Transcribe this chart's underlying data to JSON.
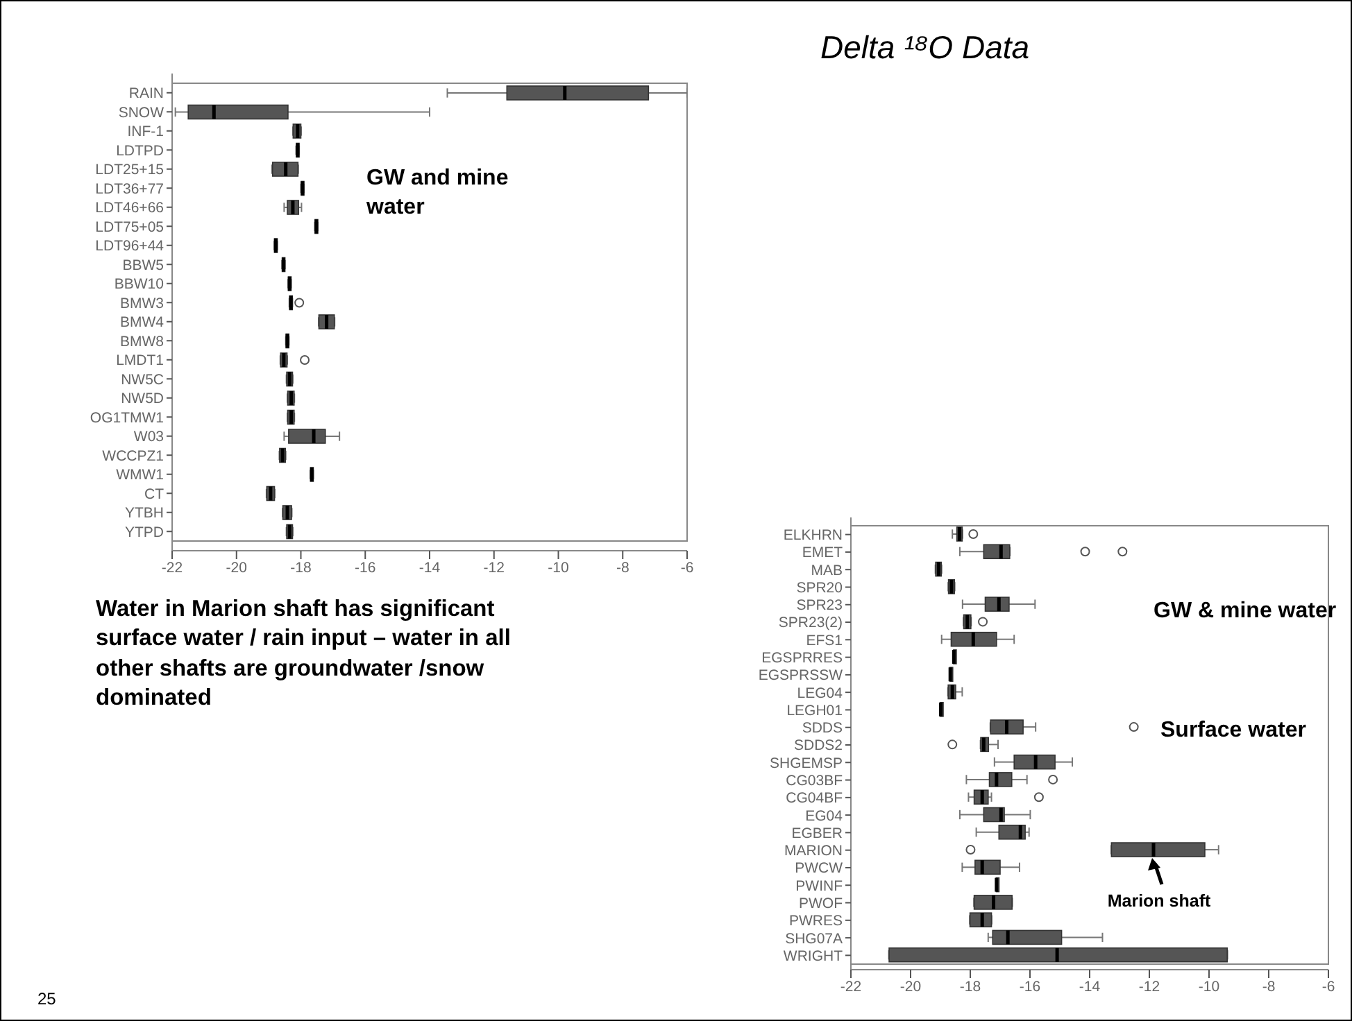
{
  "chart_data": [
    {
      "type": "box",
      "orientation": "horizontal",
      "color": "#555555",
      "categories": [
        "RAIN",
        "SNOW",
        "INF-1",
        "LDTPD",
        "LDT25+15",
        "LDT36+77",
        "LDT46+66",
        "LDT75+05",
        "LDT96+44",
        "BBW5",
        "BBW10",
        "BMW3",
        "BMW4",
        "BMW8",
        "LMDT1",
        "NW5C",
        "NW5D",
        "OG1TMW1",
        "W03",
        "WCCPZ1",
        "WMW1",
        "CT",
        "YTBH",
        "YTPD"
      ],
      "boxes": [
        {
          "low": -13.45,
          "q1": -11.6,
          "median": -9.8,
          "q3": -7.2,
          "high": -6
        },
        {
          "low": -21.9,
          "q1": -21.5,
          "median": -20.7,
          "q3": -18.4,
          "high": -14.0
        },
        {
          "low": -18.25,
          "q1": -18.24,
          "median": -18.1,
          "q3": -18.0,
          "high": -17.99
        },
        {
          "low": -18.15,
          "q1": -18.14,
          "median": -18.1,
          "q3": -18.06,
          "high": -18.05
        },
        {
          "low": -18.9,
          "q1": -18.88,
          "median": -18.47,
          "q3": -18.09,
          "high": -18.08
        },
        {
          "low": -18.0,
          "q1": -17.99,
          "median": -17.95,
          "q3": -17.91,
          "high": -17.9
        },
        {
          "low": -18.52,
          "q1": -18.42,
          "median": -18.25,
          "q3": -18.07,
          "high": -17.98
        },
        {
          "low": -17.57,
          "q1": -17.56,
          "median": -17.52,
          "q3": -17.48,
          "high": -17.47
        },
        {
          "low": -18.83,
          "q1": -18.82,
          "median": -18.78,
          "q3": -18.74,
          "high": -18.73
        },
        {
          "low": -18.59,
          "q1": -18.58,
          "median": -18.54,
          "q3": -18.5,
          "high": -18.49
        },
        {
          "low": -18.4,
          "q1": -18.39,
          "median": -18.35,
          "q3": -18.31,
          "high": -18.3
        },
        {
          "low": -18.36,
          "q1": -18.35,
          "median": -18.31,
          "q3": -18.27,
          "high": -18.26,
          "outliers": [
            -18.05
          ]
        },
        {
          "low": -17.45,
          "q1": -17.44,
          "median": -17.2,
          "q3": -16.96,
          "high": -16.95
        },
        {
          "low": -18.47,
          "q1": -18.46,
          "median": -18.42,
          "q3": -18.38,
          "high": -18.37
        },
        {
          "low": -18.64,
          "q1": -18.63,
          "median": -18.53,
          "q3": -18.43,
          "high": -18.42,
          "outliers": [
            -17.88
          ]
        },
        {
          "low": -18.45,
          "q1": -18.44,
          "median": -18.35,
          "q3": -18.26,
          "high": -18.25
        },
        {
          "low": -18.42,
          "q1": -18.41,
          "median": -18.3,
          "q3": -18.21,
          "high": -18.2
        },
        {
          "low": -18.42,
          "q1": -18.41,
          "median": -18.3,
          "q3": -18.21,
          "high": -18.2
        },
        {
          "low": -18.52,
          "q1": -18.38,
          "median": -17.6,
          "q3": -17.24,
          "high": -16.8
        },
        {
          "low": -18.67,
          "q1": -18.66,
          "median": -18.57,
          "q3": -18.48,
          "high": -18.47
        },
        {
          "low": -17.71,
          "q1": -17.7,
          "median": -17.66,
          "q3": -17.62,
          "high": -17.61
        },
        {
          "low": -19.07,
          "q1": -19.06,
          "median": -18.94,
          "q3": -18.82,
          "high": -18.81
        },
        {
          "low": -18.57,
          "q1": -18.56,
          "median": -18.42,
          "q3": -18.29,
          "high": -18.28
        },
        {
          "low": -18.45,
          "q1": -18.44,
          "median": -18.35,
          "q3": -18.26,
          "high": -18.25
        }
      ],
      "xlim": [
        -22,
        -6
      ],
      "xticks": [
        -22,
        -20,
        -18,
        -16,
        -14,
        -12,
        -10,
        -8,
        -6
      ],
      "annotations": [
        "GW and mine water",
        "Water in Marion shaft has significant surface water / rain input – water in all other shafts are groundwater /snow dominated",
        "25"
      ]
    },
    {
      "type": "box",
      "orientation": "horizontal",
      "title": "Delta ¹⁸O Data",
      "color": "#555555",
      "categories": [
        "ELKHRN",
        "EMET",
        "MAB",
        "SPR20",
        "SPR23",
        "SPR23(2)",
        "EFS1",
        "EGSPRRES",
        "EGSPRSSW",
        "LEG04",
        "LEGH01",
        "SDDS",
        "SDDS2",
        "SHGEMSP",
        "CG03BF",
        "CG04BF",
        "EG04",
        "EGBER",
        "MARION",
        "PWCW",
        "PWINF",
        "PWOF",
        "PWRES",
        "SHG07A",
        "WRIGHT"
      ],
      "boxes": [
        {
          "low": -18.6,
          "q1": -18.45,
          "median": -18.36,
          "q3": -18.27,
          "high": -18.26,
          "outliers": [
            -17.9
          ]
        },
        {
          "low": -18.35,
          "q1": -17.55,
          "median": -16.97,
          "q3": -16.68,
          "high": -16.67,
          "outliers": [
            -14.15,
            -12.9
          ]
        },
        {
          "low": -19.17,
          "q1": -19.16,
          "median": -19.06,
          "q3": -18.97,
          "high": -18.96
        },
        {
          "low": -18.74,
          "q1": -18.73,
          "median": -18.63,
          "q3": -18.53,
          "high": -18.52
        },
        {
          "low": -18.26,
          "q1": -17.5,
          "median": -17.04,
          "q3": -16.7,
          "high": -15.83
        },
        {
          "low": -18.23,
          "q1": -18.22,
          "median": -18.1,
          "q3": -17.98,
          "high": -17.97,
          "outliers": [
            -17.58
          ]
        },
        {
          "low": -18.96,
          "q1": -18.64,
          "median": -17.9,
          "q3": -17.12,
          "high": -16.53
        },
        {
          "low": -18.57,
          "q1": -18.56,
          "median": -18.55,
          "q3": -18.54,
          "high": -18.53
        },
        {
          "low": -18.69,
          "q1": -18.68,
          "median": -18.67,
          "q3": -18.66,
          "high": -18.65
        },
        {
          "low": -18.75,
          "q1": -18.74,
          "median": -18.6,
          "q3": -18.49,
          "high": -18.27
        },
        {
          "low": -19.01,
          "q1": -19.0,
          "median": -18.99,
          "q3": -18.98,
          "high": -18.97
        },
        {
          "low": -17.33,
          "q1": -17.32,
          "median": -16.78,
          "q3": -16.23,
          "high": -15.81,
          "outliers": [
            -12.52
          ]
        },
        {
          "low": -17.66,
          "q1": -17.65,
          "median": -17.55,
          "q3": -17.39,
          "high": -17.07,
          "outliers": [
            -18.6
          ]
        },
        {
          "low": -17.19,
          "q1": -16.53,
          "median": -15.81,
          "q3": -15.16,
          "high": -14.58
        },
        {
          "low": -18.13,
          "q1": -17.36,
          "median": -17.12,
          "q3": -16.61,
          "high": -16.1,
          "outliers": [
            -15.23
          ]
        },
        {
          "low": -18.06,
          "q1": -17.87,
          "median": -17.6,
          "q3": -17.4,
          "high": -17.29,
          "outliers": [
            -15.7
          ]
        },
        {
          "low": -18.35,
          "q1": -17.55,
          "median": -16.97,
          "q3": -16.86,
          "high": -15.99
        },
        {
          "low": -17.8,
          "q1": -17.04,
          "median": -16.32,
          "q3": -16.16,
          "high": -16.03
        },
        {
          "low": -13.28,
          "q1": -13.27,
          "median": -11.86,
          "q3": -10.14,
          "high": -9.68,
          "outliers": [
            -17.99
          ]
        },
        {
          "low": -18.27,
          "q1": -17.84,
          "median": -17.6,
          "q3": -17.0,
          "high": -16.35
        },
        {
          "low": -17.14,
          "q1": -17.13,
          "median": -17.12,
          "q3": -17.11,
          "high": -17.1
        },
        {
          "low": -17.88,
          "q1": -17.87,
          "median": -17.22,
          "q3": -16.6,
          "high": -16.59
        },
        {
          "low": -18.02,
          "q1": -18.01,
          "median": -17.6,
          "q3": -17.29,
          "high": -17.28
        },
        {
          "low": -17.4,
          "q1": -17.25,
          "median": -16.74,
          "q3": -14.94,
          "high": -13.57
        },
        {
          "low": -20.73,
          "q1": -20.72,
          "median": -15.09,
          "q3": -9.39,
          "high": -9.38
        }
      ],
      "xlim": [
        -22,
        -6
      ],
      "xticks": [
        -22,
        -20,
        -18,
        -16,
        -14,
        -12,
        -10,
        -8,
        -6
      ],
      "annotations": [
        "GW & mine water",
        "Surface water",
        {
          "text": "Marion shaft",
          "x": -11.86,
          "y": "MARION"
        }
      ]
    }
  ]
}
